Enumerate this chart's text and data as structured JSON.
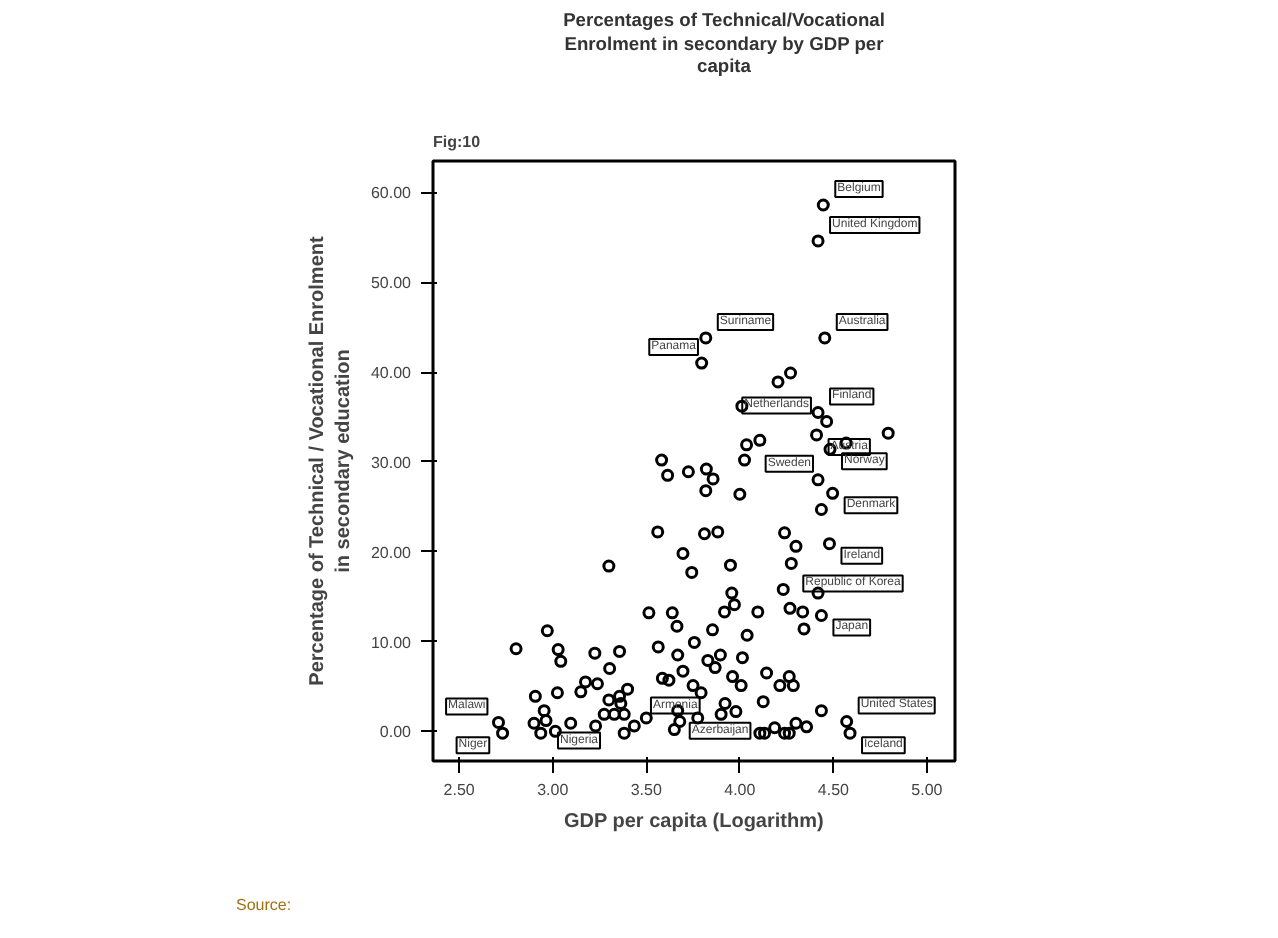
{
  "chart_data": {
    "type": "scatter",
    "title": "Percentages of Technical/Vocational Enrolment in secondary by GDP per capita",
    "xlabel": "GDP per capita (Logarithm)",
    "ylabel": "Percentage of Technical / Vocational Enrolment in secondary education",
    "marker": "circle",
    "grid": false,
    "xlim": [
      2.36,
      5.15
    ],
    "ylim": [
      -3.3,
      63.5
    ],
    "xticks": [
      {
        "value": 2.5,
        "label": "2.50"
      },
      {
        "value": 3.0,
        "label": "3.00"
      },
      {
        "value": 3.5,
        "label": "3.50"
      },
      {
        "value": 4.0,
        "label": "4.00"
      },
      {
        "value": 4.5,
        "label": "4.50"
      },
      {
        "value": 5.0,
        "label": "5.00"
      }
    ],
    "yticks": [
      {
        "value": 0,
        "label": "0.00"
      },
      {
        "value": 10,
        "label": "10.00"
      },
      {
        "value": 20,
        "label": "20.00"
      },
      {
        "value": 30,
        "label": "30.00"
      },
      {
        "value": 40,
        "label": "40.00"
      },
      {
        "value": 50,
        "label": "50.00"
      },
      {
        "value": 60,
        "label": "60.00"
      }
    ],
    "series": [
      {
        "color": "#000000",
        "x": [
          4.446,
          4.418,
          3.818,
          3.796,
          4.454,
          4.204,
          4.271,
          4.011,
          4.418,
          4.464,
          4.41,
          4.036,
          4.107,
          4.025,
          4.482,
          4.568,
          4.793,
          3.582,
          3.614,
          3.725,
          3.821,
          3.857,
          3.818,
          4.0,
          4.418,
          4.496,
          4.436,
          4.239,
          4.3,
          4.479,
          3.561,
          3.811,
          3.882,
          3.696,
          3.743,
          3.3,
          3.95,
          4.275,
          4.232,
          4.418,
          3.957,
          3.971,
          3.918,
          4.096,
          4.268,
          4.336,
          4.436,
          4.343,
          3.514,
          3.639,
          3.664,
          3.854,
          4.039,
          2.971,
          3.029,
          3.043,
          2.804,
          3.225,
          3.357,
          3.564,
          3.668,
          3.757,
          3.829,
          3.868,
          3.896,
          4.014,
          3.304,
          2.907,
          3.025,
          3.15,
          3.175,
          3.239,
          3.3,
          3.357,
          3.4,
          3.586,
          3.621,
          3.696,
          3.75,
          3.793,
          3.961,
          4.007,
          4.143,
          4.264,
          4.214,
          4.286,
          4.125,
          3.921,
          3.979,
          4.436,
          3.329,
          3.364,
          3.382,
          3.275,
          3.229,
          3.096,
          2.954,
          2.9,
          3.014,
          2.936,
          3.436,
          3.382,
          3.5,
          3.679,
          3.775,
          3.9,
          4.107,
          4.132,
          4.186,
          4.239,
          4.264,
          4.3,
          4.357,
          4.589,
          4.571,
          2.71,
          2.732,
          2.964,
          3.668,
          3.65
        ],
        "values": [
          58.6,
          54.6,
          43.8,
          41.0,
          43.8,
          38.9,
          39.9,
          36.2,
          35.5,
          34.5,
          33.0,
          31.9,
          32.4,
          30.2,
          31.4,
          32.1,
          33.2,
          30.2,
          28.5,
          28.9,
          29.2,
          28.1,
          26.8,
          26.4,
          28.0,
          26.5,
          24.7,
          22.1,
          20.6,
          20.9,
          22.2,
          22.0,
          22.2,
          19.8,
          17.7,
          18.4,
          18.5,
          18.7,
          15.8,
          15.4,
          15.4,
          14.1,
          13.3,
          13.3,
          13.7,
          13.3,
          12.9,
          11.4,
          13.2,
          13.2,
          11.7,
          11.3,
          10.7,
          11.2,
          9.1,
          7.8,
          9.2,
          8.7,
          8.9,
          9.4,
          8.5,
          9.9,
          7.9,
          7.1,
          8.5,
          8.2,
          7.0,
          3.9,
          4.3,
          4.4,
          5.5,
          5.3,
          3.5,
          3.9,
          4.7,
          5.9,
          5.7,
          6.7,
          5.1,
          4.3,
          6.1,
          5.1,
          6.5,
          6.1,
          5.1,
          5.1,
          3.3,
          3.1,
          2.2,
          2.3,
          1.9,
          3.1,
          1.9,
          1.9,
          0.6,
          0.9,
          2.3,
          0.9,
          0.0,
          -0.2,
          0.6,
          -0.2,
          1.5,
          1.1,
          1.5,
          1.9,
          -0.2,
          -0.2,
          0.4,
          -0.2,
          -0.2,
          0.9,
          0.5,
          -0.2,
          1.1,
          1.0,
          -0.2,
          1.2,
          2.3,
          0.2
        ]
      }
    ],
    "annotations": [
      {
        "text": "Belgium",
        "x": 4.446,
        "y": 58.6
      },
      {
        "text": "United Kingdom",
        "x": 4.418,
        "y": 54.6
      },
      {
        "text": "Suriname",
        "x": 3.818,
        "y": 43.8
      },
      {
        "text": "Panama",
        "x": 3.796,
        "y": 41.0
      },
      {
        "text": "Australia",
        "x": 4.454,
        "y": 43.8
      },
      {
        "text": "Finland",
        "x": 4.418,
        "y": 35.5
      },
      {
        "text": "Netherlands",
        "x": 4.464,
        "y": 34.5
      },
      {
        "text": "Austria",
        "x": 4.41,
        "y": 33.0
      },
      {
        "text": "Sweden",
        "x": 4.418,
        "y": 28.0
      },
      {
        "text": "Norway",
        "x": 4.482,
        "y": 31.4
      },
      {
        "text": "Denmark",
        "x": 4.496,
        "y": 26.5
      },
      {
        "text": "Ireland",
        "x": 4.479,
        "y": 20.9
      },
      {
        "text": "Republic of Korea",
        "x": 4.275,
        "y": 18.7
      },
      {
        "text": "Japan",
        "x": 4.436,
        "y": 12.9
      },
      {
        "text": "United States",
        "x": 4.571,
        "y": 1.1
      },
      {
        "text": "Iceland",
        "x": 4.589,
        "y": -0.2
      },
      {
        "text": "Malawi",
        "x": 2.71,
        "y": 1.0
      },
      {
        "text": "Niger",
        "x": 2.732,
        "y": -0.2
      },
      {
        "text": "Nigeria",
        "x": 2.964,
        "y": 1.2
      },
      {
        "text": "Azerbaijan",
        "x": 3.668,
        "y": 2.3
      },
      {
        "text": "Armenia",
        "x": 3.65,
        "y": 0.2
      },
      "Fig:10",
      "Source:"
    ]
  }
}
